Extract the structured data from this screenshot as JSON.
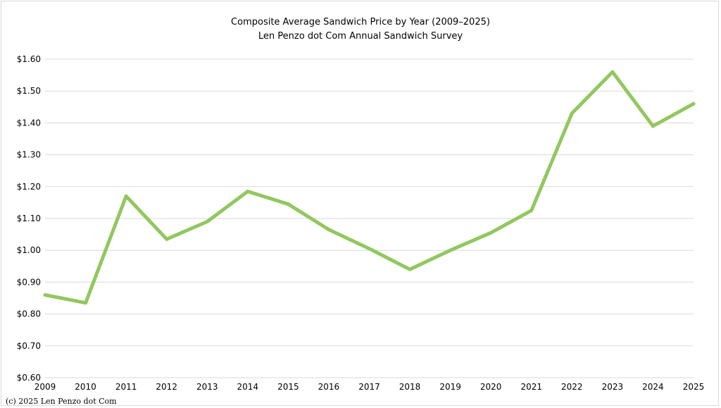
{
  "chart_data": {
    "type": "line",
    "title": "Composite Average Sandwich Price by Year (2009–2025)",
    "subtitle": "Len Penzo dot Com Annual Sandwich Survey",
    "xlabel": "",
    "ylabel": "",
    "categories": [
      "2009",
      "2010",
      "2011",
      "2012",
      "2013",
      "2014",
      "2015",
      "2016",
      "2017",
      "2018",
      "2019",
      "2020",
      "2021",
      "2022",
      "2023",
      "2024",
      "2025"
    ],
    "series": [
      {
        "values": [
          0.86,
          0.835,
          1.17,
          1.035,
          1.09,
          1.185,
          1.145,
          1.065,
          1.005,
          0.94,
          1.0,
          1.055,
          1.125,
          1.43,
          1.56,
          1.39,
          1.46
        ],
        "color": "#92c75f"
      }
    ],
    "ylim": [
      0.6,
      1.6
    ],
    "yticks": [
      "$0.60",
      "$0.70",
      "$0.80",
      "$0.90",
      "$1.00",
      "$1.10",
      "$1.20",
      "$1.30",
      "$1.40",
      "$1.50",
      "$1.60"
    ],
    "ytick_values": [
      0.6,
      0.7,
      0.8,
      0.9,
      1.0,
      1.1,
      1.2,
      1.3,
      1.4,
      1.5,
      1.6
    ],
    "grid": true,
    "legend": "none"
  },
  "footer": {
    "copyright": "(c) 2025 Len Penzo dot Com"
  },
  "colors": {
    "gridline": "#d9d9d9",
    "line": "#92c75f"
  }
}
